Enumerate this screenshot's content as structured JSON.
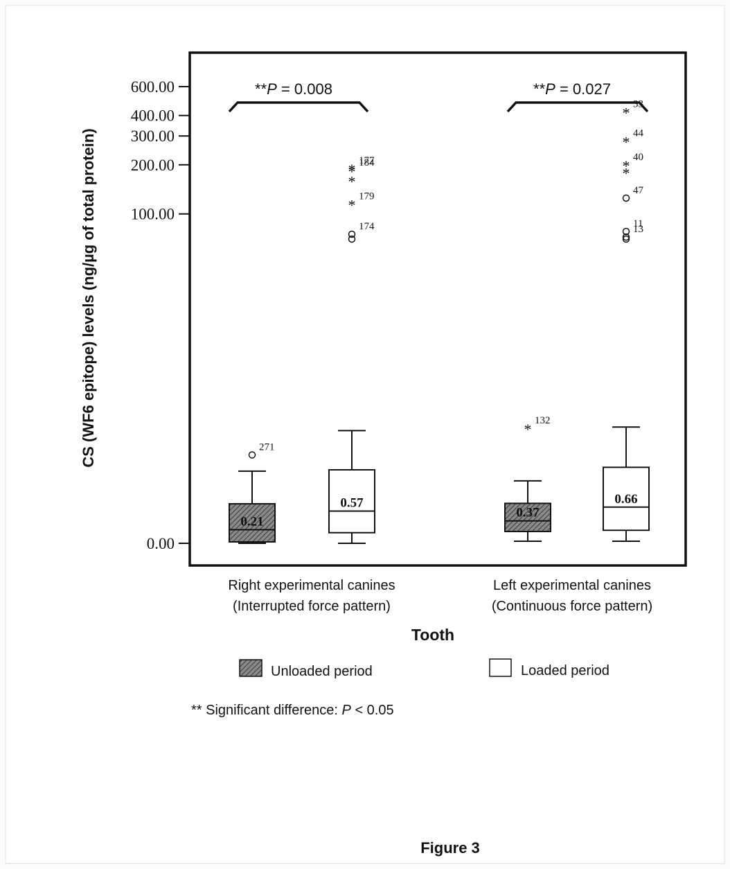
{
  "figure_caption": "Figure 3",
  "chart_data": {
    "type": "boxplot",
    "title": "",
    "xlabel": "Tooth",
    "ylabel": "CS (WF6 epitope) levels (ng/µg of total protein)",
    "y_tick_labels": [
      "600.00",
      "400.00",
      "300.00",
      "200.00",
      "100.00",
      "0.00"
    ],
    "y_tick_values": [
      600,
      400,
      300,
      200,
      100,
      0
    ],
    "groups": [
      {
        "label_line1": "Right experimental canines",
        "label_line2": "(Interrupted force pattern)",
        "significance": "**P = 0.008",
        "sig_prefix": "**",
        "sig_p": "P",
        "sig_rest": " = 0.008"
      },
      {
        "label_line1": "Left experimental canines",
        "label_line2": "(Continuous force pattern)",
        "significance": "**P = 0.027",
        "sig_prefix": "**",
        "sig_p": "P",
        "sig_rest": " = 0.027"
      }
    ],
    "series": [
      {
        "name": "Unloaded period",
        "pattern": "hatched"
      },
      {
        "name": "Loaded period",
        "pattern": "open"
      }
    ],
    "boxes": [
      {
        "group": 0,
        "series": 0,
        "median_label": "0.21",
        "min": 0.0,
        "q1": 0.02,
        "median": 0.21,
        "q3": 0.74,
        "max": 1.75,
        "outliers": [
          {
            "value": 2.45,
            "marker": "o",
            "label": "271"
          }
        ]
      },
      {
        "group": 0,
        "series": 1,
        "median_label": "0.57",
        "min": 0.0,
        "q1": 0.16,
        "median": 0.57,
        "q3": 1.8,
        "max": 3.85,
        "outliers": [
          {
            "value": 190,
            "marker": "*",
            "label": "177"
          },
          {
            "value": 185,
            "marker": "*",
            "label": "184"
          },
          {
            "value": 160,
            "marker": "*",
            "label": ""
          },
          {
            "value": 115,
            "marker": "*",
            "label": "179"
          },
          {
            "value": 75,
            "marker": "o",
            "label": "174"
          },
          {
            "value": 70,
            "marker": "o",
            "label": ""
          }
        ]
      },
      {
        "group": 1,
        "series": 0,
        "median_label": "0.37",
        "min": 0.03,
        "q1": 0.18,
        "median": 0.37,
        "q3": 0.75,
        "max": 1.4,
        "outliers": [
          {
            "value": 4.0,
            "marker": "*",
            "label": "132"
          }
        ]
      },
      {
        "group": 1,
        "series": 1,
        "median_label": "0.66",
        "min": 0.03,
        "q1": 0.2,
        "median": 0.66,
        "q3": 1.9,
        "max": 4.1,
        "outliers": [
          {
            "value": 420,
            "marker": "*",
            "label": "33"
          },
          {
            "value": 280,
            "marker": "*",
            "label": "44"
          },
          {
            "value": 200,
            "marker": "*",
            "label": "40"
          },
          {
            "value": 180,
            "marker": "*",
            "label": ""
          },
          {
            "value": 125,
            "marker": "o",
            "label": "47"
          },
          {
            "value": 78,
            "marker": "o",
            "label": "11"
          },
          {
            "value": 72,
            "marker": "o",
            "label": "13"
          },
          {
            "value": 70,
            "marker": "o",
            "label": ""
          }
        ]
      }
    ],
    "footnote": {
      "prefix": "** Significant difference: ",
      "p": "P",
      "rest": " < 0.05"
    },
    "legend_position": "bottom",
    "grid": false
  }
}
